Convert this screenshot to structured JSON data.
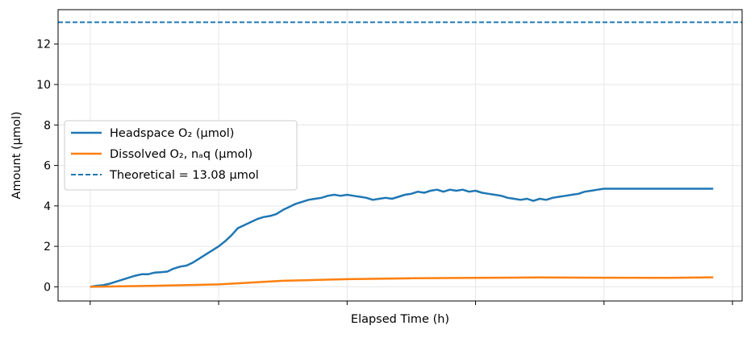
{
  "chart_data": {
    "type": "line",
    "xlabel": "Elapsed Time (h)",
    "ylabel": "Amount (µmol)",
    "xlim": [
      -0.05,
      1.015
    ],
    "ylim": [
      -0.7,
      13.7
    ],
    "yticks": [
      0,
      2,
      4,
      6,
      8,
      10,
      12
    ],
    "xticks": [
      0,
      0.2,
      0.4,
      0.6,
      0.8,
      1.0
    ],
    "xtick_labels_visible": false,
    "grid": true,
    "legend_position": "center-left",
    "series": [
      {
        "name": "Headspace O₂ (µmol)",
        "color": "#1f77b4",
        "style": "solid",
        "x": [
          0,
          0.01,
          0.02,
          0.03,
          0.04,
          0.05,
          0.06,
          0.07,
          0.08,
          0.09,
          0.1,
          0.11,
          0.12,
          0.13,
          0.14,
          0.15,
          0.16,
          0.17,
          0.18,
          0.19,
          0.2,
          0.21,
          0.22,
          0.23,
          0.24,
          0.25,
          0.26,
          0.27,
          0.28,
          0.29,
          0.3,
          0.31,
          0.32,
          0.33,
          0.34,
          0.35,
          0.36,
          0.37,
          0.38,
          0.39,
          0.4,
          0.41,
          0.42,
          0.43,
          0.44,
          0.45,
          0.46,
          0.47,
          0.48,
          0.49,
          0.5,
          0.51,
          0.52,
          0.53,
          0.54,
          0.55,
          0.56,
          0.57,
          0.58,
          0.59,
          0.6,
          0.61,
          0.62,
          0.63,
          0.64,
          0.65,
          0.66,
          0.67,
          0.68,
          0.69,
          0.7,
          0.71,
          0.72,
          0.73,
          0.74,
          0.75,
          0.76,
          0.77,
          0.78,
          0.79,
          0.8,
          0.81,
          0.82,
          0.83,
          0.84,
          0.85,
          0.86,
          0.87,
          0.88,
          0.89,
          0.9,
          0.91,
          0.92,
          0.93,
          0.94,
          0.95,
          0.96,
          0.97
        ],
        "y": [
          0.0,
          0.05,
          0.08,
          0.15,
          0.25,
          0.35,
          0.45,
          0.55,
          0.62,
          0.62,
          0.7,
          0.72,
          0.75,
          0.9,
          1.0,
          1.05,
          1.2,
          1.4,
          1.6,
          1.8,
          2.0,
          2.25,
          2.55,
          2.9,
          3.05,
          3.2,
          3.35,
          3.45,
          3.5,
          3.6,
          3.8,
          3.95,
          4.1,
          4.2,
          4.3,
          4.35,
          4.4,
          4.5,
          4.55,
          4.5,
          4.55,
          4.5,
          4.45,
          4.4,
          4.3,
          4.35,
          4.4,
          4.35,
          4.45,
          4.55,
          4.6,
          4.7,
          4.65,
          4.75,
          4.8,
          4.7,
          4.8,
          4.75,
          4.8,
          4.7,
          4.75,
          4.65,
          4.6,
          4.55,
          4.5,
          4.4,
          4.35,
          4.3,
          4.35,
          4.25,
          4.35,
          4.3,
          4.4,
          4.45,
          4.5,
          4.55,
          4.6,
          4.7,
          4.75,
          4.8,
          4.85,
          4.85,
          4.85,
          4.85,
          4.85,
          4.85,
          4.85,
          4.85,
          4.85,
          4.85,
          4.85,
          4.85,
          4.85,
          4.85,
          4.85,
          4.85,
          4.85,
          4.85
        ]
      },
      {
        "name": "Dissolved O₂, nₐq (µmol)",
        "color": "#ff7f0e",
        "style": "solid",
        "x": [
          0,
          0.1,
          0.2,
          0.3,
          0.4,
          0.5,
          0.6,
          0.7,
          0.8,
          0.9,
          0.97
        ],
        "y": [
          0.0,
          0.05,
          0.12,
          0.3,
          0.38,
          0.42,
          0.44,
          0.46,
          0.45,
          0.44,
          0.47
        ]
      },
      {
        "name": "Theoretical = 13.08 µmol",
        "color": "#1f77b4",
        "style": "dashed",
        "constant_y": 13.08
      }
    ]
  }
}
